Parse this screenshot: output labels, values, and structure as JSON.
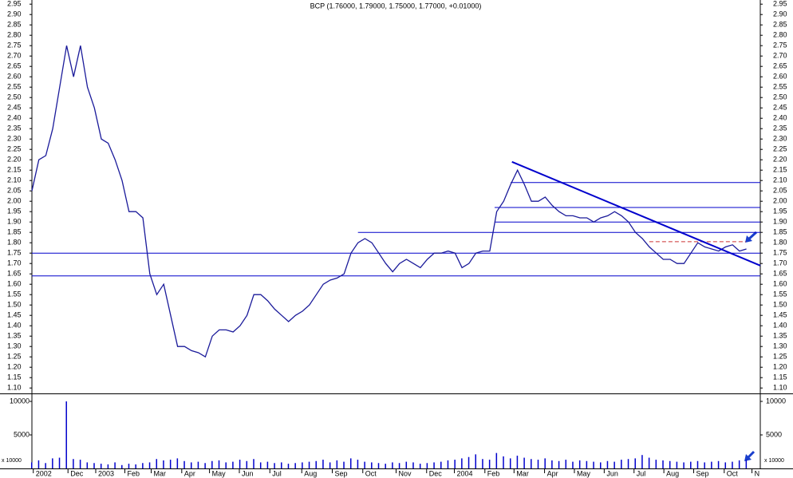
{
  "chart_data": {
    "type": "price-volume",
    "title": "BCP (1.76000, 1.79000, 1.75000, 1.77000, +0.01000)",
    "xlim": [
      0,
      105
    ],
    "xticks": [
      {
        "value": 0.2,
        "label": "2002"
      },
      {
        "value": 5.2,
        "label": "Dec"
      },
      {
        "value": 9.2,
        "label": "2003"
      },
      {
        "value": 13.4,
        "label": "Feb"
      },
      {
        "value": 17.2,
        "label": "Mar"
      },
      {
        "value": 21.6,
        "label": "Apr"
      },
      {
        "value": 25.6,
        "label": "May"
      },
      {
        "value": 29.9,
        "label": "Jun"
      },
      {
        "value": 34.3,
        "label": "Jul"
      },
      {
        "value": 38.9,
        "label": "Aug"
      },
      {
        "value": 43.3,
        "label": "Sep"
      },
      {
        "value": 47.7,
        "label": "Oct"
      },
      {
        "value": 52.5,
        "label": "Nov"
      },
      {
        "value": 56.9,
        "label": "Dec"
      },
      {
        "value": 60.9,
        "label": "2004"
      },
      {
        "value": 65.3,
        "label": "Feb"
      },
      {
        "value": 69.5,
        "label": "Mar"
      },
      {
        "value": 73.9,
        "label": "Apr"
      },
      {
        "value": 78.2,
        "label": "May"
      },
      {
        "value": 82.5,
        "label": "Jun"
      },
      {
        "value": 86.8,
        "label": "Jul"
      },
      {
        "value": 91.1,
        "label": "Aug"
      },
      {
        "value": 95.4,
        "label": "Sep"
      },
      {
        "value": 99.8,
        "label": "Oct"
      },
      {
        "value": 103.8,
        "label": "N"
      }
    ],
    "ylim": [
      1.07,
      2.97
    ],
    "yticks": [
      2.95,
      {
        "value": 2.9,
        "label": "2.90"
      },
      2.85,
      {
        "value": 2.8,
        "label": "2.80"
      },
      2.75,
      {
        "value": 2.7,
        "label": "2.70"
      },
      2.65,
      {
        "value": 2.6,
        "label": "2.60"
      },
      2.55,
      {
        "value": 2.5,
        "label": "2.50"
      },
      2.45,
      {
        "value": 2.4,
        "label": "2.40"
      },
      2.35,
      {
        "value": 2.3,
        "label": "2.30"
      },
      2.25,
      {
        "value": 2.2,
        "label": "2.20"
      },
      2.15,
      {
        "value": 2.1,
        "label": "2.10"
      },
      2.05,
      {
        "value": 2,
        "label": "2.00"
      },
      1.95,
      {
        "value": 1.9,
        "label": "1.90"
      },
      1.85,
      {
        "value": 1.8,
        "label": "1.80"
      },
      1.75,
      {
        "value": 1.7,
        "label": "1.70"
      },
      1.65,
      {
        "value": 1.6,
        "label": "1.60"
      },
      1.55,
      {
        "value": 1.5,
        "label": "1.50"
      },
      1.45,
      {
        "value": 1.4,
        "label": "1.40"
      },
      1.35,
      {
        "value": 1.3,
        "label": "1.30"
      },
      1.25,
      {
        "value": 1.2,
        "label": "1.20"
      },
      1.15,
      {
        "value": 1.1,
        "label": "1.10"
      }
    ],
    "price": {
      "color": "#1a1a9a",
      "x": [
        0,
        1,
        2,
        3,
        4,
        5,
        6,
        7,
        8,
        9,
        10,
        11,
        12,
        13,
        14,
        15,
        16,
        17,
        18,
        19,
        20,
        21,
        22,
        23,
        24,
        25,
        26,
        27,
        28,
        29,
        30,
        31,
        32,
        33,
        34,
        35,
        36,
        37,
        38,
        39,
        40,
        41,
        42,
        43,
        44,
        45,
        46,
        47,
        48,
        49,
        50,
        51,
        52,
        53,
        54,
        55,
        56,
        57,
        58,
        59,
        60,
        61,
        62,
        63,
        64,
        65,
        66,
        67,
        68,
        69,
        70,
        71,
        72,
        73,
        74,
        75,
        76,
        77,
        78,
        79,
        80,
        81,
        82,
        83,
        84,
        85,
        86,
        87,
        88,
        89,
        90,
        91,
        92,
        93,
        94,
        95,
        96,
        97,
        98,
        99,
        100,
        101,
        102,
        103
      ],
      "values": [
        2.05,
        2.2,
        2.22,
        2.35,
        2.55,
        2.75,
        2.6,
        2.75,
        2.55,
        2.45,
        2.3,
        2.28,
        2.2,
        2.1,
        1.95,
        1.95,
        1.92,
        1.65,
        1.55,
        1.6,
        1.45,
        1.3,
        1.3,
        1.28,
        1.27,
        1.25,
        1.35,
        1.38,
        1.38,
        1.37,
        1.4,
        1.45,
        1.55,
        1.55,
        1.52,
        1.48,
        1.45,
        1.42,
        1.45,
        1.47,
        1.5,
        1.55,
        1.6,
        1.62,
        1.63,
        1.65,
        1.75,
        1.8,
        1.82,
        1.8,
        1.75,
        1.7,
        1.66,
        1.7,
        1.72,
        1.7,
        1.68,
        1.72,
        1.75,
        1.75,
        1.76,
        1.75,
        1.68,
        1.7,
        1.75,
        1.76,
        1.76,
        1.95,
        2,
        2.08,
        2.15,
        2.08,
        2,
        2,
        2.02,
        1.98,
        1.95,
        1.93,
        1.93,
        1.92,
        1.92,
        1.9,
        1.92,
        1.93,
        1.95,
        1.93,
        1.9,
        1.85,
        1.82,
        1.78,
        1.75,
        1.72,
        1.72,
        1.7,
        1.7,
        1.75,
        1.8,
        1.78,
        1.77,
        1.76,
        1.78,
        1.79,
        1.76,
        1.77
      ]
    },
    "hlines": [
      {
        "y": 1.64,
        "x0": 0,
        "x1": 105,
        "color": "#0000cc"
      },
      {
        "y": 1.75,
        "x0": 0,
        "x1": 105,
        "color": "#0000cc"
      },
      {
        "y": 1.85,
        "x0": 47,
        "x1": 105,
        "color": "#0000cc"
      },
      {
        "y": 1.9,
        "x0": 66.7,
        "x1": 105,
        "color": "#0000cc"
      },
      {
        "y": 1.97,
        "x0": 66.7,
        "x1": 105,
        "color": "#0000cc"
      },
      {
        "y": 2.09,
        "x0": 69,
        "x1": 105,
        "color": "#0000cc"
      },
      {
        "y": 1.805,
        "x0": 89,
        "x1": 102.9,
        "color": "#cc3333",
        "dashed": true
      }
    ],
    "trendline": {
      "x": [
        69.2,
        105
      ],
      "y": [
        2.19,
        1.69
      ],
      "color": "#0000cc"
    },
    "volume": {
      "color": "#0000cc",
      "ylim": [
        0,
        11070
      ],
      "yticks": [
        10000,
        5000
      ],
      "unit_label": "x 10000",
      "values": [
        900,
        1200,
        800,
        1500,
        1600,
        10000,
        1400,
        1300,
        900,
        800,
        700,
        600,
        900,
        500,
        700,
        600,
        800,
        900,
        1400,
        1200,
        1300,
        1500,
        1100,
        900,
        1000,
        800,
        1100,
        1200,
        900,
        1000,
        1300,
        1100,
        1400,
        900,
        1000,
        800,
        900,
        700,
        800,
        900,
        1000,
        1100,
        1300,
        900,
        1200,
        1000,
        1500,
        1300,
        1000,
        900,
        800,
        700,
        900,
        800,
        1000,
        900,
        700,
        800,
        900,
        1000,
        1200,
        1300,
        1500,
        1700,
        2100,
        1400,
        1300,
        2300,
        1800,
        1500,
        1900,
        1600,
        1400,
        1300,
        1500,
        1200,
        1100,
        1300,
        1000,
        1200,
        1100,
        1000,
        900,
        1100,
        1000,
        1300,
        1400,
        1500,
        2000,
        1600,
        1300,
        1200,
        1100,
        1000,
        900,
        1000,
        1100,
        900,
        1000,
        1100,
        900,
        1000,
        1200,
        1300
      ]
    }
  }
}
